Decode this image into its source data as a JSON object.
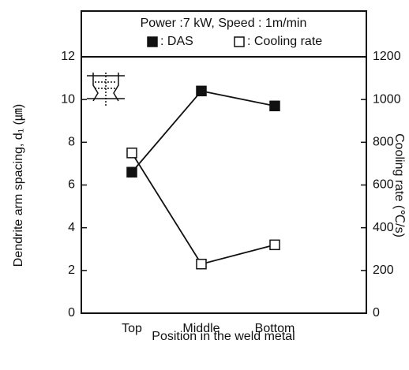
{
  "chart_data": {
    "type": "line",
    "title": "Power :7 kW, Speed : 1m/min",
    "categories": [
      "Top",
      "Middle",
      "Bottom"
    ],
    "series": [
      {
        "name": ": DAS",
        "color": "#111111",
        "marker": "filled-square",
        "values": [
          6.6,
          10.4,
          9.7
        ]
      },
      {
        "name": ": Cooling rate",
        "color": "#111111",
        "marker": "open-square",
        "axis": "y2",
        "values": [
          750,
          230,
          320
        ]
      }
    ],
    "xlabel": "Position in the weld metal",
    "ylabel": "Dendrite arm spacing, d₁ (㎛)",
    "y2label": "Cooling rate (℃/s)",
    "ylim": [
      0,
      12
    ],
    "yticks": [
      0,
      2,
      4,
      6,
      8,
      10,
      12
    ],
    "y2lim": [
      0,
      1200
    ],
    "y2ticks": [
      0,
      200,
      400,
      600,
      800,
      1000,
      1200
    ],
    "grid": false
  }
}
